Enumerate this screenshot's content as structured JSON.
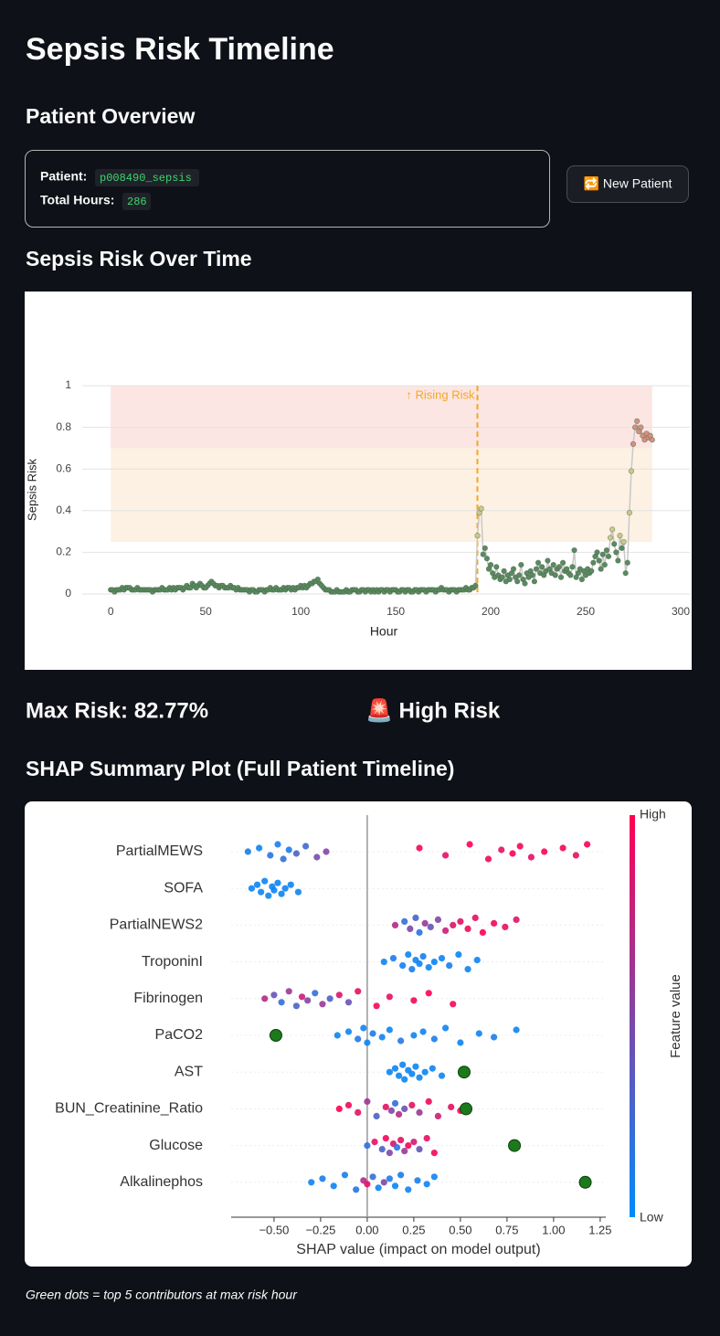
{
  "page": {
    "title": "Sepsis Risk Timeline",
    "overview_heading": "Patient Overview",
    "patient_label": "Patient:",
    "patient_id": "p008490_sepsis",
    "hours_label": "Total Hours:",
    "hours": 286,
    "button": "🔁 New Patient",
    "max_risk": "Max Risk: 82.77%",
    "risk_status": "🚨 High Risk",
    "footnote": "Green dots = top 5 contributors at max risk hour"
  },
  "chart_data": [
    {
      "type": "line",
      "title": "Sepsis Risk Over Time",
      "x_label": "Hour",
      "y_label": "Sepsis Risk",
      "xlim": [
        -15,
        300
      ],
      "ylim": [
        -0.044,
        1.404
      ],
      "xticks": [
        0,
        50,
        100,
        150,
        200,
        250,
        300
      ],
      "yticks": [
        0,
        0.2,
        0.4,
        0.6,
        0.8,
        1
      ],
      "grid": true,
      "line_color": "#c8c8c8",
      "marker_color": "#5b8a60",
      "bands": [
        {
          "x": [
            0,
            285
          ],
          "y": [
            0.25,
            0.7
          ],
          "color": "#fdf1e3",
          "marker_color": "#c9c98a"
        },
        {
          "x": [
            0,
            285
          ],
          "y": [
            0.7,
            1
          ],
          "color": "#fce6e4",
          "marker_color": "#d4907e"
        }
      ],
      "annotation": {
        "text": "↑ Rising Risk",
        "x": 193,
        "color": "#f5a623"
      },
      "x": [
        0,
        1,
        2,
        3,
        4,
        5,
        6,
        7,
        8,
        9,
        10,
        11,
        12,
        13,
        14,
        15,
        16,
        17,
        18,
        19,
        20,
        21,
        22,
        23,
        24,
        25,
        26,
        27,
        28,
        29,
        30,
        31,
        32,
        33,
        34,
        35,
        36,
        37,
        38,
        39,
        40,
        41,
        42,
        43,
        44,
        45,
        46,
        47,
        48,
        49,
        50,
        51,
        52,
        53,
        54,
        55,
        56,
        57,
        58,
        59,
        60,
        61,
        62,
        63,
        64,
        65,
        66,
        67,
        68,
        69,
        70,
        71,
        72,
        73,
        74,
        75,
        76,
        77,
        78,
        79,
        80,
        81,
        82,
        83,
        84,
        85,
        86,
        87,
        88,
        89,
        90,
        91,
        92,
        93,
        94,
        95,
        96,
        97,
        98,
        99,
        100,
        101,
        102,
        103,
        104,
        105,
        106,
        107,
        108,
        109,
        110,
        111,
        112,
        113,
        114,
        115,
        116,
        117,
        118,
        119,
        120,
        121,
        122,
        123,
        124,
        125,
        126,
        127,
        128,
        129,
        130,
        131,
        132,
        133,
        134,
        135,
        136,
        137,
        138,
        139,
        140,
        141,
        142,
        143,
        144,
        145,
        146,
        147,
        148,
        149,
        150,
        151,
        152,
        153,
        154,
        155,
        156,
        157,
        158,
        159,
        160,
        161,
        162,
        163,
        164,
        165,
        166,
        167,
        168,
        169,
        170,
        171,
        172,
        173,
        174,
        175,
        176,
        177,
        178,
        179,
        180,
        181,
        182,
        183,
        184,
        185,
        186,
        187,
        188,
        189,
        190,
        191,
        192,
        193,
        194,
        195,
        196,
        197,
        198,
        199,
        200,
        201,
        202,
        203,
        204,
        205,
        206,
        207,
        208,
        209,
        210,
        211,
        212,
        213,
        214,
        215,
        216,
        217,
        218,
        219,
        220,
        221,
        222,
        223,
        224,
        225,
        226,
        227,
        228,
        229,
        230,
        231,
        232,
        233,
        234,
        235,
        236,
        237,
        238,
        239,
        240,
        241,
        242,
        243,
        244,
        245,
        246,
        247,
        248,
        249,
        250,
        251,
        252,
        253,
        254,
        255,
        256,
        257,
        258,
        259,
        260,
        261,
        262,
        263,
        264,
        265,
        266,
        267,
        268,
        269,
        270,
        271,
        272,
        273,
        274,
        275,
        276,
        277,
        278,
        279,
        280,
        281,
        282,
        283,
        284,
        285
      ],
      "values": [
        0.02,
        0.02,
        0.01,
        0.02,
        0.02,
        0.02,
        0.03,
        0.02,
        0.03,
        0.03,
        0.03,
        0.02,
        0.02,
        0.02,
        0.03,
        0.02,
        0.02,
        0.02,
        0.02,
        0.02,
        0.02,
        0.02,
        0.01,
        0.02,
        0.02,
        0.02,
        0.02,
        0.03,
        0.02,
        0.02,
        0.02,
        0.03,
        0.02,
        0.03,
        0.02,
        0.03,
        0.03,
        0.03,
        0.02,
        0.03,
        0.04,
        0.03,
        0.03,
        0.05,
        0.04,
        0.03,
        0.04,
        0.05,
        0.04,
        0.03,
        0.03,
        0.04,
        0.05,
        0.06,
        0.05,
        0.04,
        0.04,
        0.03,
        0.04,
        0.04,
        0.03,
        0.03,
        0.03,
        0.04,
        0.03,
        0.03,
        0.02,
        0.03,
        0.02,
        0.02,
        0.02,
        0.02,
        0.02,
        0.01,
        0.02,
        0.02,
        0.01,
        0.01,
        0.02,
        0.02,
        0.02,
        0.01,
        0.02,
        0.02,
        0.03,
        0.02,
        0.02,
        0.03,
        0.02,
        0.02,
        0.02,
        0.03,
        0.02,
        0.03,
        0.03,
        0.02,
        0.03,
        0.02,
        0.03,
        0.03,
        0.04,
        0.03,
        0.04,
        0.03,
        0.04,
        0.05,
        0.05,
        0.06,
        0.06,
        0.07,
        0.05,
        0.04,
        0.03,
        0.02,
        0.02,
        0.02,
        0.01,
        0.01,
        0.01,
        0.02,
        0.01,
        0.01,
        0.01,
        0.01,
        0.02,
        0.01,
        0.01,
        0.02,
        0.02,
        0.02,
        0.01,
        0.01,
        0.02,
        0.02,
        0.01,
        0.02,
        0.02,
        0.01,
        0.02,
        0.01,
        0.02,
        0.01,
        0.02,
        0.02,
        0.01,
        0.02,
        0.02,
        0.01,
        0.02,
        0.02,
        0.02,
        0.01,
        0.01,
        0.02,
        0.02,
        0.01,
        0.02,
        0.02,
        0.01,
        0.01,
        0.02,
        0.02,
        0.01,
        0.02,
        0.02,
        0.02,
        0.01,
        0.02,
        0.02,
        0.02,
        0.02,
        0.01,
        0.02,
        0.02,
        0.03,
        0.02,
        0.02,
        0.02,
        0.01,
        0.02,
        0.02,
        0.02,
        0.01,
        0.02,
        0.02,
        0.02,
        0.02,
        0.03,
        0.02,
        0.02,
        0.03,
        0.03,
        0.04,
        0.28,
        0.39,
        0.41,
        0.19,
        0.22,
        0.17,
        0.12,
        0.14,
        0.1,
        0.08,
        0.13,
        0.09,
        0.07,
        0.08,
        0.11,
        0.06,
        0.09,
        0.07,
        0.1,
        0.12,
        0.08,
        0.06,
        0.09,
        0.14,
        0.07,
        0.05,
        0.1,
        0.08,
        0.11,
        0.09,
        0.06,
        0.12,
        0.15,
        0.1,
        0.13,
        0.09,
        0.11,
        0.16,
        0.12,
        0.1,
        0.14,
        0.09,
        0.12,
        0.13,
        0.08,
        0.15,
        0.11,
        0.12,
        0.1,
        0.09,
        0.13,
        0.21,
        0.08,
        0.1,
        0.12,
        0.07,
        0.11,
        0.09,
        0.12,
        0.1,
        0.11,
        0.15,
        0.18,
        0.2,
        0.16,
        0.12,
        0.19,
        0.14,
        0.21,
        0.18,
        0.27,
        0.31,
        0.24,
        0.2,
        0.16,
        0.28,
        0.22,
        0.25,
        0.1,
        0.15,
        0.39,
        0.59,
        0.72,
        0.8,
        0.83,
        0.78,
        0.8,
        0.76,
        0.74,
        0.77,
        0.75,
        0.76,
        0.74
      ]
    },
    {
      "type": "beeswarm",
      "title": "SHAP Summary Plot (Full Patient Timeline)",
      "x_label": "SHAP value (impact on model output)",
      "xlim": [
        -0.73,
        1.28
      ],
      "xticks": [
        {
          "value": -0.5,
          "label": "−0.50"
        },
        {
          "value": -0.25,
          "label": "−0.25"
        },
        {
          "value": 0,
          "label": "0.00"
        },
        0.25,
        {
          "value": 0.5,
          "label": "0.50"
        },
        0.75,
        {
          "value": 1,
          "label": "1.00"
        },
        1.25
      ],
      "colorbar": {
        "label": "Feature value",
        "low": "Low",
        "high": "High",
        "colors": [
          "#008bfb",
          "#ff0052"
        ]
      },
      "highlight_color": "#1b7a1b",
      "features": [
        {
          "name": "PartialMEWS",
          "shap": [
            -0.64,
            -0.58,
            -0.52,
            -0.48,
            -0.45,
            -0.42,
            -0.38,
            -0.33,
            -0.27,
            -0.22,
            0.28,
            0.42,
            0.55,
            0.65,
            0.72,
            0.78,
            0.82,
            0.88,
            0.95,
            1.05,
            1.12,
            1.18
          ],
          "feature_value": [
            0.1,
            0.05,
            0.15,
            0.1,
            0.2,
            0.1,
            0.3,
            0.25,
            0.45,
            0.5,
            0.95,
            0.9,
            1,
            0.95,
            0.9,
            1,
            0.95,
            0.9,
            1,
            0.95,
            0.9,
            1
          ]
        },
        {
          "name": "SOFA",
          "shap": [
            -0.62,
            -0.59,
            -0.57,
            -0.55,
            -0.53,
            -0.51,
            -0.5,
            -0.48,
            -0.46,
            -0.44,
            -0.41,
            -0.37
          ],
          "feature_value": [
            0.05,
            0.05,
            0.05,
            0.05,
            0.05,
            0.05,
            0.05,
            0.05,
            0.05,
            0.05,
            0.05,
            0.05
          ]
        },
        {
          "name": "PartialNEWS2",
          "shap": [
            0.15,
            0.2,
            0.23,
            0.26,
            0.28,
            0.31,
            0.34,
            0.38,
            0.42,
            0.46,
            0.5,
            0.54,
            0.58,
            0.62,
            0.68,
            0.74,
            0.8
          ],
          "feature_value": [
            0.7,
            0.2,
            0.5,
            0.3,
            0.15,
            0.6,
            0.4,
            0.5,
            0.8,
            0.85,
            0.9,
            0.95,
            0.9,
            1,
            0.95,
            0.9,
            0.85
          ]
        },
        {
          "name": "TroponinI",
          "shap": [
            0.09,
            0.14,
            0.19,
            0.22,
            0.24,
            0.26,
            0.28,
            0.3,
            0.33,
            0.36,
            0.4,
            0.44,
            0.49,
            0.54,
            0.59
          ],
          "feature_value": [
            0.05,
            0.1,
            0.05,
            0.05,
            0.1,
            0.05,
            0.05,
            0.1,
            0.05,
            0.05,
            0.05,
            0.1,
            0.05,
            0.05,
            0.05
          ]
        },
        {
          "name": "Fibrinogen",
          "shap": [
            -0.55,
            -0.5,
            -0.46,
            -0.42,
            -0.38,
            -0.35,
            -0.32,
            -0.28,
            -0.24,
            -0.2,
            -0.15,
            -0.1,
            -0.05,
            0.05,
            0.12,
            0.25,
            0.33,
            0.46
          ],
          "feature_value": [
            0.7,
            0.4,
            0.2,
            0.6,
            0.3,
            0.8,
            0.5,
            0.2,
            0.6,
            0.3,
            0.85,
            0.4,
            0.9,
            0.95,
            0.9,
            0.95,
            1,
            0.95
          ]
        },
        {
          "name": "PaCO2",
          "shap": [
            -0.16,
            -0.1,
            -0.05,
            -0.02,
            0,
            0.03,
            0.08,
            0.12,
            0.18,
            0.25,
            0.3,
            0.36,
            0.42,
            0.5,
            0.6,
            0.68,
            0.8
          ],
          "feature_value": [
            0.05,
            0.05,
            0.15,
            0.05,
            0.05,
            0.1,
            0.05,
            0.05,
            0.15,
            0.05,
            0.05,
            0.1,
            0.05,
            0.05,
            0.05,
            0.1,
            0.05
          ],
          "highlight": -0.49
        },
        {
          "name": "AST",
          "shap": [
            0.12,
            0.15,
            0.17,
            0.19,
            0.2,
            0.22,
            0.24,
            0.26,
            0.28,
            0.31,
            0.35,
            0.4
          ],
          "feature_value": [
            0.05,
            0.05,
            0.05,
            0.05,
            0.05,
            0.05,
            0.05,
            0.05,
            0.05,
            0.05,
            0.05,
            0.05
          ],
          "highlight": 0.52
        },
        {
          "name": "BUN_Creatinine_Ratio",
          "shap": [
            -0.15,
            -0.1,
            -0.05,
            0,
            0.05,
            0.1,
            0.13,
            0.15,
            0.17,
            0.2,
            0.24,
            0.28,
            0.33,
            0.38,
            0.45,
            0.5
          ],
          "feature_value": [
            1,
            0.95,
            0.9,
            0.6,
            0.3,
            0.9,
            0.5,
            0.2,
            0.7,
            0.4,
            0.9,
            0.6,
            0.95,
            0.8,
            0.9,
            0.95
          ],
          "highlight": 0.53
        },
        {
          "name": "Glucose",
          "shap": [
            0,
            0.04,
            0.08,
            0.1,
            0.12,
            0.14,
            0.16,
            0.18,
            0.2,
            0.22,
            0.25,
            0.28,
            0.32,
            0.36
          ],
          "feature_value": [
            0.2,
            0.9,
            0.3,
            0.95,
            0.5,
            0.85,
            0.15,
            0.9,
            0.6,
            0.95,
            0.8,
            0.4,
            0.9,
            0.95
          ],
          "highlight": 0.79
        },
        {
          "name": "Alkalinephos",
          "shap": [
            -0.3,
            -0.24,
            -0.18,
            -0.12,
            -0.06,
            -0.02,
            0,
            0.03,
            0.06,
            0.09,
            0.12,
            0.15,
            0.18,
            0.22,
            0.27,
            0.32,
            0.36
          ],
          "feature_value": [
            0.05,
            0.1,
            0.05,
            0.1,
            0.15,
            0.7,
            0.9,
            0.2,
            0.05,
            0.5,
            0.1,
            0.05,
            0.1,
            0.05,
            0.1,
            0.05,
            0.05
          ],
          "highlight": 1.17
        }
      ]
    }
  ]
}
